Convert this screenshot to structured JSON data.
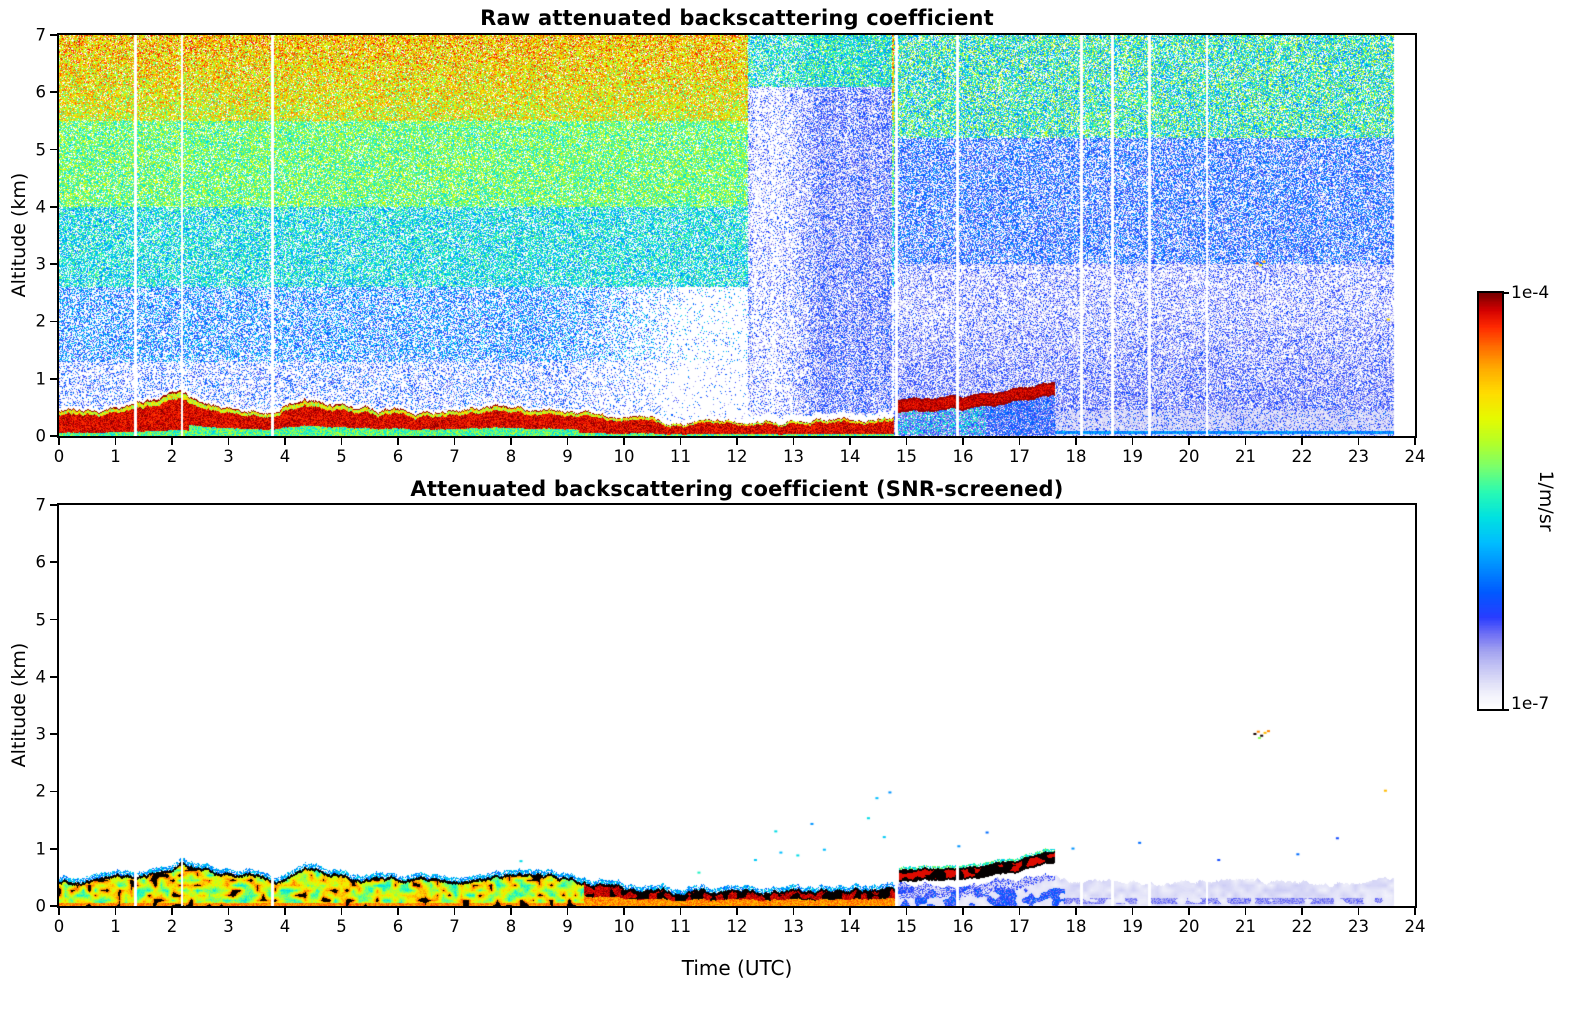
{
  "chart_data": [
    {
      "type": "heatmap",
      "noise_mode": "raw",
      "title": "Raw attenuated backscattering coefficient",
      "xlabel": "",
      "ylabel": "Altitude (km)",
      "xlim": [
        0,
        24
      ],
      "ylim": [
        0,
        7
      ],
      "xticks": [
        0,
        1,
        2,
        3,
        4,
        5,
        6,
        7,
        8,
        9,
        10,
        11,
        12,
        13,
        14,
        15,
        16,
        17,
        18,
        19,
        20,
        21,
        22,
        23,
        24
      ],
      "yticks": [
        0,
        1,
        2,
        3,
        4,
        5,
        6,
        7
      ],
      "value_scale": "log",
      "value_min": "1e-7",
      "value_max": "1e-4",
      "data_end_utc": 23.62,
      "gap_times_utc": [
        1.35,
        2.18,
        3.78,
        14.82,
        15.9,
        18.1,
        18.65,
        19.3,
        20.32
      ],
      "rain_virga_band_utc": [
        12.2,
        14.75
      ],
      "pale_band_top_km": 0.45,
      "bl_top_km": [
        [
          0,
          0.42
        ],
        [
          0.3,
          0.44
        ],
        [
          0.6,
          0.46
        ],
        [
          0.9,
          0.5
        ],
        [
          1.2,
          0.52
        ],
        [
          1.5,
          0.55
        ],
        [
          1.8,
          0.6
        ],
        [
          2.0,
          0.68
        ],
        [
          2.15,
          0.78
        ],
        [
          2.3,
          0.68
        ],
        [
          2.6,
          0.58
        ],
        [
          2.9,
          0.52
        ],
        [
          3.2,
          0.5
        ],
        [
          3.5,
          0.52
        ],
        [
          3.7,
          0.46
        ],
        [
          3.9,
          0.44
        ],
        [
          4.1,
          0.55
        ],
        [
          4.35,
          0.65
        ],
        [
          4.6,
          0.62
        ],
        [
          4.9,
          0.55
        ],
        [
          5.2,
          0.5
        ],
        [
          5.6,
          0.47
        ],
        [
          6.0,
          0.44
        ],
        [
          6.5,
          0.44
        ],
        [
          7.0,
          0.47
        ],
        [
          7.5,
          0.5
        ],
        [
          8.0,
          0.52
        ],
        [
          8.5,
          0.5
        ],
        [
          8.9,
          0.45
        ],
        [
          9.3,
          0.4
        ],
        [
          9.7,
          0.35
        ],
        [
          10.1,
          0.3
        ],
        [
          10.6,
          0.27
        ],
        [
          11.0,
          0.25
        ],
        [
          11.5,
          0.24
        ],
        [
          12.0,
          0.24
        ],
        [
          12.5,
          0.26
        ],
        [
          13.0,
          0.28
        ],
        [
          13.5,
          0.29
        ],
        [
          14.0,
          0.27
        ],
        [
          14.4,
          0.28
        ],
        [
          14.8,
          0.3
        ]
      ],
      "elevated_layer_km": [
        [
          14.85,
          0.52
        ],
        [
          15.1,
          0.56
        ],
        [
          15.4,
          0.55
        ],
        [
          15.7,
          0.57
        ],
        [
          16.0,
          0.58
        ],
        [
          16.3,
          0.6
        ],
        [
          16.6,
          0.63
        ],
        [
          16.9,
          0.68
        ],
        [
          17.2,
          0.74
        ],
        [
          17.45,
          0.8
        ],
        [
          17.6,
          0.82
        ]
      ],
      "speckles": [
        [
          21.18,
          3.03,
          0.9
        ],
        [
          21.3,
          3.06,
          0.82
        ],
        [
          21.24,
          3.0,
          0.7
        ],
        [
          23.5,
          2.05,
          0.75
        ]
      ]
    },
    {
      "type": "heatmap",
      "noise_mode": "screened",
      "title": "Attenuated backscattering coefficient (SNR-screened)",
      "xlabel": "Time (UTC)",
      "ylabel": "Altitude (km)",
      "xlim": [
        0,
        24
      ],
      "ylim": [
        0,
        7
      ],
      "xticks": [
        0,
        1,
        2,
        3,
        4,
        5,
        6,
        7,
        8,
        9,
        10,
        11,
        12,
        13,
        14,
        15,
        16,
        17,
        18,
        19,
        20,
        21,
        22,
        23,
        24
      ],
      "yticks": [
        0,
        1,
        2,
        3,
        4,
        5,
        6,
        7
      ],
      "value_scale": "log",
      "value_min": "1e-7",
      "value_max": "1e-4",
      "data_end_utc": 23.62,
      "gap_times_utc": [
        1.35,
        2.18,
        3.78,
        14.82,
        15.9,
        18.1,
        18.65,
        19.3,
        20.32
      ],
      "pale_band_top_km": 0.42,
      "contour_color": "#000000",
      "bl_top_km": [
        [
          0,
          0.42
        ],
        [
          0.3,
          0.44
        ],
        [
          0.6,
          0.46
        ],
        [
          0.9,
          0.5
        ],
        [
          1.2,
          0.52
        ],
        [
          1.5,
          0.55
        ],
        [
          1.8,
          0.6
        ],
        [
          2.0,
          0.68
        ],
        [
          2.15,
          0.78
        ],
        [
          2.3,
          0.68
        ],
        [
          2.6,
          0.58
        ],
        [
          2.9,
          0.52
        ],
        [
          3.2,
          0.5
        ],
        [
          3.5,
          0.52
        ],
        [
          3.7,
          0.46
        ],
        [
          3.9,
          0.44
        ],
        [
          4.1,
          0.55
        ],
        [
          4.35,
          0.65
        ],
        [
          4.6,
          0.62
        ],
        [
          4.9,
          0.55
        ],
        [
          5.2,
          0.5
        ],
        [
          5.6,
          0.47
        ],
        [
          6.0,
          0.44
        ],
        [
          6.5,
          0.44
        ],
        [
          7.0,
          0.47
        ],
        [
          7.5,
          0.5
        ],
        [
          8.0,
          0.52
        ],
        [
          8.5,
          0.5
        ],
        [
          8.9,
          0.45
        ],
        [
          9.3,
          0.4
        ],
        [
          9.7,
          0.35
        ],
        [
          10.1,
          0.3
        ],
        [
          10.6,
          0.27
        ],
        [
          11.0,
          0.25
        ],
        [
          11.5,
          0.24
        ],
        [
          12.0,
          0.24
        ],
        [
          12.5,
          0.26
        ],
        [
          13.0,
          0.28
        ],
        [
          13.5,
          0.29
        ],
        [
          14.0,
          0.27
        ],
        [
          14.4,
          0.28
        ],
        [
          14.8,
          0.3
        ]
      ],
      "elevated_layer_km": [
        [
          14.85,
          0.52
        ],
        [
          15.1,
          0.56
        ],
        [
          15.4,
          0.55
        ],
        [
          15.7,
          0.57
        ],
        [
          16.0,
          0.58
        ],
        [
          16.3,
          0.6
        ],
        [
          16.6,
          0.63
        ],
        [
          16.9,
          0.68
        ],
        [
          17.2,
          0.74
        ],
        [
          17.45,
          0.8
        ],
        [
          17.6,
          0.82
        ]
      ],
      "speckles": [
        [
          21.14,
          3.02,
          1
        ],
        [
          21.2,
          3.06,
          0.85
        ],
        [
          21.26,
          2.99,
          1
        ],
        [
          21.32,
          3.04,
          0.8
        ],
        [
          21.38,
          3.07,
          0.85
        ],
        [
          21.22,
          2.95,
          0.6
        ],
        [
          23.45,
          2.03,
          0.8
        ],
        [
          12.3,
          0.82,
          0.42
        ],
        [
          12.66,
          1.32,
          0.45
        ],
        [
          12.75,
          0.95,
          0.4
        ],
        [
          13.05,
          0.9,
          0.45
        ],
        [
          13.3,
          1.45,
          0.35
        ],
        [
          13.52,
          1.0,
          0.4
        ],
        [
          14.3,
          1.55,
          0.45
        ],
        [
          14.45,
          1.9,
          0.4
        ],
        [
          14.58,
          1.22,
          0.42
        ],
        [
          14.68,
          2.0,
          0.35
        ],
        [
          15.9,
          1.06,
          0.35
        ],
        [
          16.4,
          1.3,
          0.3
        ],
        [
          17.92,
          1.02,
          0.35
        ],
        [
          19.1,
          1.12,
          0.3
        ],
        [
          20.5,
          0.82,
          0.25
        ],
        [
          21.9,
          0.92,
          0.3
        ],
        [
          8.15,
          0.8,
          0.45
        ],
        [
          11.3,
          0.6,
          0.5
        ],
        [
          22.6,
          1.2,
          0.25
        ]
      ]
    }
  ],
  "colorbar": {
    "label": "1/m/sr",
    "top_label": "1e-4",
    "bottom_label": "1e-7"
  },
  "colormap": {
    "stops": [
      [
        0.0,
        [
          255,
          255,
          255
        ]
      ],
      [
        0.03,
        [
          244,
          244,
          252
        ]
      ],
      [
        0.06,
        [
          225,
          225,
          248
        ]
      ],
      [
        0.1,
        [
          196,
          196,
          244
        ]
      ],
      [
        0.14,
        [
          160,
          160,
          240
        ]
      ],
      [
        0.18,
        [
          110,
          110,
          245
        ]
      ],
      [
        0.22,
        [
          40,
          60,
          255
        ]
      ],
      [
        0.28,
        [
          0,
          90,
          255
        ]
      ],
      [
        0.34,
        [
          0,
          140,
          255
        ]
      ],
      [
        0.4,
        [
          0,
          190,
          255
        ]
      ],
      [
        0.46,
        [
          0,
          225,
          225
        ]
      ],
      [
        0.52,
        [
          40,
          250,
          180
        ]
      ],
      [
        0.58,
        [
          120,
          255,
          110
        ]
      ],
      [
        0.64,
        [
          180,
          255,
          40
        ]
      ],
      [
        0.7,
        [
          230,
          250,
          0
        ]
      ],
      [
        0.76,
        [
          255,
          220,
          0
        ]
      ],
      [
        0.82,
        [
          255,
          170,
          0
        ]
      ],
      [
        0.87,
        [
          255,
          110,
          0
        ]
      ],
      [
        0.92,
        [
          255,
          40,
          0
        ]
      ],
      [
        0.96,
        [
          210,
          0,
          0
        ]
      ],
      [
        1.0,
        [
          120,
          0,
          0
        ]
      ]
    ]
  }
}
